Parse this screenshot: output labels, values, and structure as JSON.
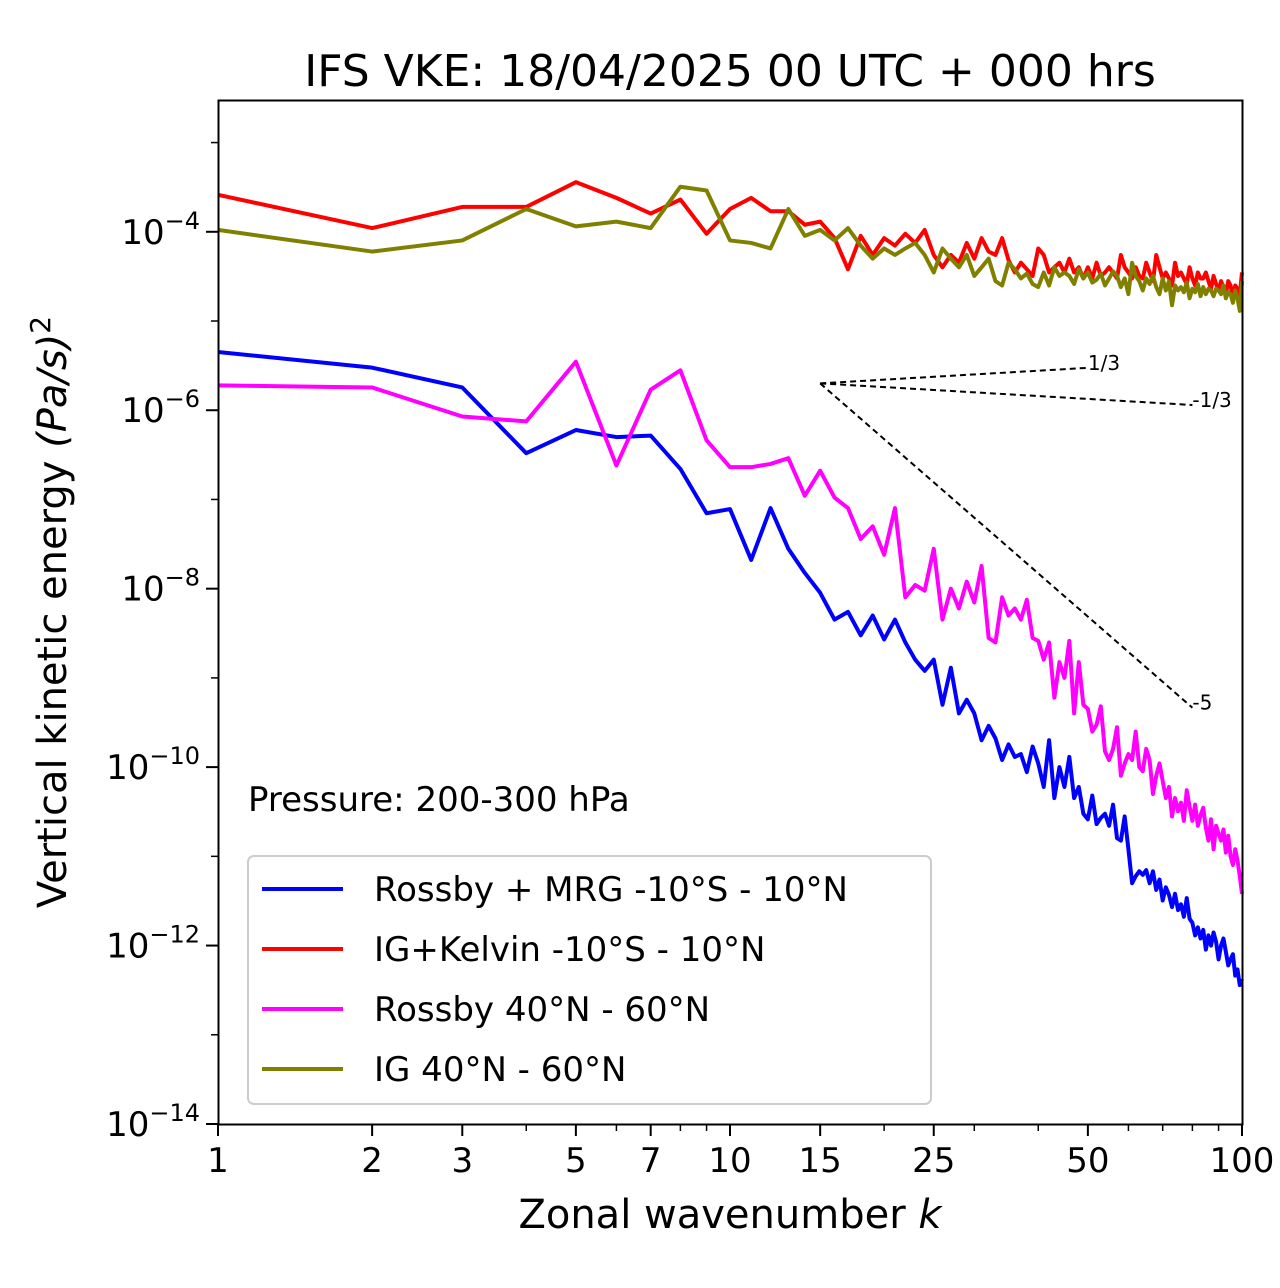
{
  "chart_data": {
    "type": "line",
    "title": "IFS VKE: 18/04/2025 00 UTC + 000 hrs",
    "xlabel": "Zonal wavenumber",
    "xlabel_symbol": "k",
    "ylabel": "Vertical kinetic energy",
    "ylabel_units": "(Pa/s)",
    "ylabel_units_exp": "2",
    "annotation": "Pressure: 200-300 hPa",
    "x_scale": "log",
    "y_scale": "log",
    "xlim": [
      1,
      100
    ],
    "ylim": [
      1e-14,
      0.003
    ],
    "x_ticks": [
      1,
      2,
      3,
      5,
      7,
      10,
      15,
      25,
      50,
      100
    ],
    "y_ticks": [
      {
        "base": "10",
        "exp": "−4",
        "value": 0.0001
      },
      {
        "base": "10",
        "exp": "−6",
        "value": 1e-06
      },
      {
        "base": "10",
        "exp": "−8",
        "value": 1e-08
      },
      {
        "base": "10",
        "exp": "−10",
        "value": 1e-10
      },
      {
        "base": "10",
        "exp": "−12",
        "value": 1e-12
      },
      {
        "base": "10",
        "exp": "−14",
        "value": 1e-14
      }
    ],
    "grid": false,
    "legend_position": "lower-left",
    "reference_slopes": [
      {
        "label": "1/3",
        "slope": 0.3333,
        "x_start": 15,
        "x_end": 50,
        "y_start": 2e-06
      },
      {
        "label": "-1/3",
        "slope": -0.3333,
        "x_start": 15,
        "x_end": 80,
        "y_start": 2e-06
      },
      {
        "label": "-5",
        "slope": -5,
        "x_start": 15,
        "x_end": 80,
        "y_start": 2e-06
      }
    ],
    "series": [
      {
        "name": "Rossby + MRG -10°S - 10°N",
        "color": "#0000ff",
        "x": [
          1,
          2,
          3,
          4,
          5,
          6,
          7,
          8,
          9,
          10,
          11,
          12,
          13,
          14,
          15,
          16,
          17,
          18,
          19,
          20,
          21,
          22,
          23,
          24,
          25,
          26,
          27,
          28,
          29,
          30,
          31,
          32,
          33,
          34,
          35,
          36,
          37,
          38,
          39,
          40,
          41,
          42,
          43,
          44,
          45,
          46,
          47,
          48,
          49,
          50,
          51,
          52,
          53,
          54,
          55,
          56,
          57,
          58,
          59,
          60,
          61,
          62,
          63,
          64,
          65,
          66,
          67,
          68,
          69,
          70,
          71,
          72,
          73,
          74,
          75,
          76,
          77,
          78,
          79,
          80,
          81,
          82,
          83,
          84,
          85,
          86,
          87,
          88,
          89,
          90,
          91,
          92,
          93,
          94,
          95,
          96,
          97,
          98,
          99,
          100
        ],
        "y": [
          4.5e-06,
          3e-06,
          1.8e-06,
          3.3e-07,
          6e-07,
          5e-07,
          5.2e-07,
          2.2e-07,
          7e-08,
          7.8e-08,
          2.1e-08,
          8e-08,
          2.8e-08,
          1.5e-08,
          9e-09,
          4.5e-09,
          5.5e-09,
          3e-09,
          5e-09,
          2.7e-09,
          4.5e-09,
          2.5e-09,
          1.6e-09,
          1.2e-09,
          1.6e-09,
          5e-10,
          1.3e-09,
          4e-10,
          5.7e-10,
          4e-10,
          2e-10,
          2.9e-10,
          2.1e-10,
          1.2e-10,
          1.8e-10,
          1.3e-10,
          1.4e-10,
          8.8e-11,
          1.7e-10,
          1.1e-10,
          6e-11,
          2e-10,
          4.5e-11,
          1e-10,
          6e-11,
          1.3e-10,
          4.5e-11,
          6e-11,
          3e-11,
          2.6e-11,
          4.8e-11,
          2.3e-11,
          2.7e-11,
          3e-11,
          2.2e-11,
          3.8e-11,
          1.6e-11,
          1.5e-11,
          2.8e-11,
          1.2e-11,
          5e-12,
          6e-12,
          6.8e-12,
          6.2e-12,
          7e-12,
          5e-12,
          6.8e-12,
          4.2e-12,
          5.5e-12,
          3.2e-12,
          4.5e-12,
          3.7e-12,
          2.7e-12,
          3.8e-12,
          2.5e-12,
          2.9e-12,
          2.1e-12,
          3.4e-12,
          2e-12,
          1.8e-12,
          1.3e-12,
          1.6e-12,
          1.2e-12,
          1.5e-12,
          9e-13,
          1.3e-12,
          1e-12,
          1.4e-12,
          1.1e-12,
          7e-13,
          1e-12,
          1.2e-12,
          8.5e-13,
          6e-13,
          7e-13,
          8e-13,
          4.6e-13,
          5.4e-13,
          3.6e-13,
          4.2e-13
        ]
      },
      {
        "name": "IG+Kelvin -10°S - 10°N",
        "color": "#ff0000",
        "x": [
          1,
          2,
          3,
          4,
          5,
          6,
          7,
          8,
          9,
          10,
          11,
          12,
          13,
          14,
          15,
          16,
          17,
          18,
          19,
          20,
          21,
          22,
          23,
          24,
          25,
          26,
          27,
          28,
          29,
          30,
          31,
          32,
          33,
          34,
          35,
          36,
          37,
          38,
          39,
          40,
          41,
          42,
          43,
          44,
          45,
          46,
          47,
          48,
          49,
          50,
          51,
          52,
          53,
          54,
          55,
          56,
          57,
          58,
          59,
          60,
          61,
          62,
          63,
          64,
          65,
          66,
          67,
          68,
          69,
          70,
          71,
          72,
          73,
          74,
          75,
          76,
          77,
          78,
          79,
          80,
          81,
          82,
          83,
          84,
          85,
          86,
          87,
          88,
          89,
          90,
          91,
          92,
          93,
          94,
          95,
          96,
          97,
          98,
          99,
          100
        ],
        "y": [
          0.00026,
          0.00011,
          0.00019,
          0.00019,
          0.00036,
          0.00024,
          0.00016,
          0.00023,
          9.5e-05,
          0.00018,
          0.00024,
          0.00017,
          0.00017,
          0.00012,
          0.00013,
          8.5e-05,
          3.8e-05,
          9e-05,
          5.5e-05,
          8.5e-05,
          7e-05,
          9.5e-05,
          7.5e-05,
          0.000105,
          5.5e-05,
          4e-05,
          5.5e-05,
          4.5e-05,
          7.5e-05,
          5e-05,
          8.5e-05,
          6e-05,
          5.5e-05,
          8.5e-05,
          4.8e-05,
          3.5e-05,
          4.5e-05,
          3.8e-05,
          3.2e-05,
          6.5e-05,
          5.5e-05,
          3.5e-05,
          4e-05,
          4.5e-05,
          3.5e-05,
          5e-05,
          3.5e-05,
          4e-05,
          3e-05,
          4e-05,
          3e-05,
          4.5e-05,
          3.2e-05,
          3.5e-05,
          4e-05,
          3.5e-05,
          3e-05,
          5.5e-05,
          4e-05,
          3.5e-05,
          3e-05,
          4e-05,
          3.2e-05,
          3e-05,
          4.5e-05,
          3.5e-05,
          2.8e-05,
          5.5e-05,
          4e-05,
          3e-05,
          3.5e-05,
          3e-05,
          2.5e-05,
          4.5e-05,
          3.2e-05,
          3.5e-05,
          3e-05,
          2.6e-05,
          4e-05,
          3e-05,
          2.5e-05,
          3.5e-05,
          3e-05,
          3e-05,
          3.5e-05,
          2.8e-05,
          2.3e-05,
          3.2e-05,
          2.6e-05,
          2.2e-05,
          2.8e-05,
          2.4e-05,
          2e-05,
          2.8e-05,
          2.5e-05,
          1.8e-05,
          2.5e-05,
          2.3e-05,
          2e-05,
          3.5e-05
        ]
      },
      {
        "name": "Rossby 40°N - 60°N",
        "color": "#ff00ff",
        "x": [
          1,
          2,
          3,
          4,
          5,
          6,
          7,
          8,
          9,
          10,
          11,
          12,
          13,
          14,
          15,
          16,
          17,
          18,
          19,
          20,
          21,
          22,
          23,
          24,
          25,
          26,
          27,
          28,
          29,
          30,
          31,
          32,
          33,
          34,
          35,
          36,
          37,
          38,
          39,
          40,
          41,
          42,
          43,
          44,
          45,
          46,
          47,
          48,
          49,
          50,
          51,
          52,
          53,
          54,
          55,
          56,
          57,
          58,
          59,
          60,
          61,
          62,
          63,
          64,
          65,
          66,
          67,
          68,
          69,
          70,
          71,
          72,
          73,
          74,
          75,
          76,
          77,
          78,
          79,
          80,
          81,
          82,
          83,
          84,
          85,
          86,
          87,
          88,
          89,
          90,
          91,
          92,
          93,
          94,
          95,
          96,
          97,
          98,
          99,
          100
        ],
        "y": [
          1.9e-06,
          1.8e-06,
          8.5e-07,
          7.5e-07,
          3.5e-06,
          2.4e-07,
          1.7e-06,
          2.8e-06,
          4.6e-07,
          2.3e-07,
          2.3e-07,
          2.5e-07,
          2.9e-07,
          1.1e-07,
          2.1e-07,
          1.05e-07,
          8e-08,
          3.6e-08,
          5e-08,
          2.4e-08,
          8e-08,
          8e-09,
          1.1e-08,
          9.5e-09,
          2.8e-08,
          4.5e-09,
          1e-08,
          6e-09,
          1.2e-08,
          7e-09,
          1.8e-08,
          2.8e-09,
          2.5e-09,
          8e-09,
          5e-09,
          6e-09,
          4.5e-09,
          7.5e-09,
          2.8e-09,
          2.6e-09,
          1.6e-09,
          2.5e-09,
          6e-10,
          1.5e-09,
          1e-09,
          2.6e-09,
          4e-10,
          1.5e-09,
          5e-10,
          4.5e-10,
          2.5e-10,
          3e-10,
          4.8e-10,
          1.5e-10,
          1.2e-10,
          1.6e-10,
          2.8e-10,
          8e-11,
          1.1e-10,
          1.4e-10,
          1.2e-10,
          2.5e-10,
          1e-10,
          9e-11,
          1.6e-10,
          1.2e-10,
          5e-11,
          8e-11,
          1.1e-10,
          7e-11,
          4.5e-11,
          6e-11,
          2.8e-11,
          4.5e-11,
          3.2e-11,
          4e-11,
          2.5e-11,
          5.5e-11,
          3.6e-11,
          2.5e-11,
          3.8e-11,
          2.2e-11,
          2.9e-11,
          3.5e-11,
          2.1e-11,
          1.5e-11,
          2.6e-11,
          1.2e-11,
          2.2e-11,
          1.8e-11,
          1.5e-11,
          2e-11,
          1.1e-11,
          1.7e-11,
          1e-11,
          8e-12,
          1.2e-11,
          9e-12,
          6e-12,
          3.8e-12
        ]
      },
      {
        "name": "IG 40°N - 60°N",
        "color": "#808000",
        "x": [
          1,
          2,
          3,
          4,
          5,
          6,
          7,
          8,
          9,
          10,
          11,
          12,
          13,
          14,
          15,
          16,
          17,
          18,
          19,
          20,
          21,
          22,
          23,
          24,
          25,
          26,
          27,
          28,
          29,
          30,
          31,
          32,
          33,
          34,
          35,
          36,
          37,
          38,
          39,
          40,
          41,
          42,
          43,
          44,
          45,
          46,
          47,
          48,
          49,
          50,
          51,
          52,
          53,
          54,
          55,
          56,
          57,
          58,
          59,
          60,
          61,
          62,
          63,
          64,
          65,
          66,
          67,
          68,
          69,
          70,
          71,
          72,
          73,
          74,
          75,
          76,
          77,
          78,
          79,
          80,
          81,
          82,
          83,
          84,
          85,
          86,
          87,
          88,
          89,
          90,
          91,
          92,
          93,
          94,
          95,
          96,
          97,
          98,
          99,
          100
        ],
        "y": [
          0.000105,
          6e-05,
          8e-05,
          0.00018,
          0.000115,
          0.00013,
          0.00011,
          0.00032,
          0.00029,
          8e-05,
          7.5e-05,
          6.5e-05,
          0.00018,
          9e-05,
          0.000105,
          8e-05,
          0.00011,
          7e-05,
          5e-05,
          6.5e-05,
          5.5e-05,
          6.5e-05,
          7.5e-05,
          5.5e-05,
          3.5e-05,
          6.5e-05,
          5e-05,
          4e-05,
          5.5e-05,
          3.2e-05,
          4e-05,
          5e-05,
          2.8e-05,
          2.5e-05,
          4.5e-05,
          3.8e-05,
          3e-05,
          3.4e-05,
          2.6e-05,
          2.4e-05,
          3.5e-05,
          2.5e-05,
          4e-05,
          3.2e-05,
          3.5e-05,
          3.2e-05,
          2.6e-05,
          3.8e-05,
          3e-05,
          3.5e-05,
          2.7e-05,
          2.9e-05,
          3.4e-05,
          2.5e-05,
          3e-05,
          3.6e-05,
          3.2e-05,
          2.4e-05,
          3e-05,
          2e-05,
          4.5e-05,
          3.2e-05,
          2.8e-05,
          2.2e-05,
          3e-05,
          2.6e-05,
          3.2e-05,
          2.4e-05,
          2e-05,
          3e-05,
          2.2e-05,
          2.8e-05,
          1.5e-05,
          2.5e-05,
          2.2e-05,
          2.4e-05,
          2.1e-05,
          2.7e-05,
          1.8e-05,
          2.3e-05,
          2.1e-05,
          2.6e-05,
          1.9e-05,
          2.4e-05,
          2e-05,
          2.3e-05,
          2.2e-05,
          1.9e-05,
          2.3e-05,
          2.2e-05,
          2e-05,
          2.5e-05,
          1.8e-05,
          2.1e-05,
          2e-05,
          1.6e-05,
          2.2e-05,
          1.8e-05,
          1.3e-05,
          2.8e-05
        ]
      }
    ]
  }
}
